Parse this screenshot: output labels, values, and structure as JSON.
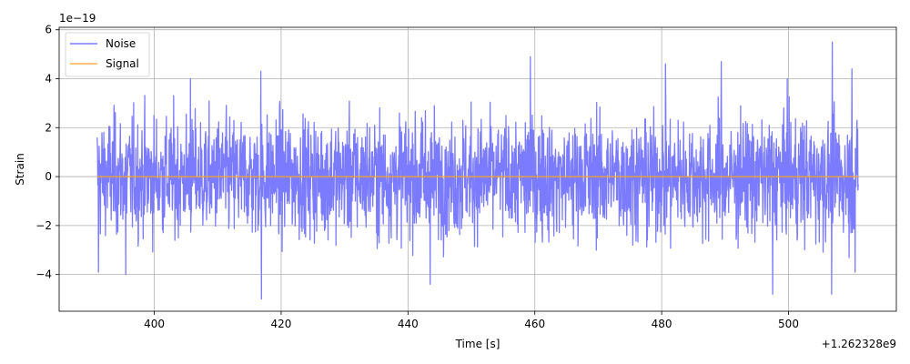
{
  "chart_data": {
    "type": "line",
    "title": "",
    "xlabel": "Time [s]",
    "ylabel": "Strain",
    "x_offset_label": "+1.262328e9",
    "y_exponent_label": "1e−19",
    "xlim": [
      385,
      517
    ],
    "ylim": [
      -5.5e-19,
      6.1e-19
    ],
    "x_ticks": [
      400,
      420,
      440,
      460,
      480,
      500
    ],
    "x_tick_labels": [
      "400",
      "420",
      "440",
      "460",
      "480",
      "500"
    ],
    "y_ticks": [
      -4e-19,
      -2e-19,
      0,
      2e-19,
      4e-19,
      6e-19
    ],
    "y_tick_labels": [
      "−4",
      "−2",
      "0",
      "2",
      "4",
      "6"
    ],
    "grid": true,
    "legend_position": "upper-left",
    "series": [
      {
        "name": "Noise",
        "color": "#7b7bff",
        "x_range": [
          391,
          511
        ],
        "amplitude_rms": 1.2e-19,
        "peak_max": 5.5e-19,
        "peak_min": -5e-19,
        "peaks": [
          [
            391.2,
            -3.9e-19
          ],
          [
            395.5,
            -4e-19
          ],
          [
            405.7,
            4e-19
          ],
          [
            416.8,
            4.3e-19
          ],
          [
            416.9,
            -5e-19
          ],
          [
            443.5,
            -4.4e-19
          ],
          [
            459.3,
            4.9e-19
          ],
          [
            480.6,
            4.6e-19
          ],
          [
            489.4,
            4.7e-19
          ],
          [
            497.5,
            -4.8e-19
          ],
          [
            499.8,
            4e-19
          ],
          [
            506.9,
            5.5e-19
          ],
          [
            506.8,
            -4.8e-19
          ],
          [
            510.0,
            4.4e-19
          ],
          [
            510.5,
            -3.9e-19
          ]
        ]
      },
      {
        "name": "Signal",
        "color": "#f5a623",
        "x": [
          391,
          511
        ],
        "y": [
          0,
          0
        ]
      }
    ]
  }
}
